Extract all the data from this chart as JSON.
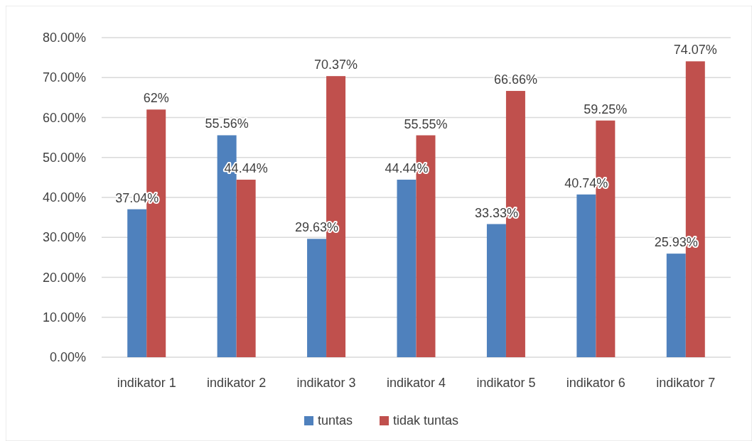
{
  "chart_data": {
    "type": "bar",
    "categories": [
      "indikator 1",
      "indikator 2",
      "indikator 3",
      "indikator 4",
      "indikator 5",
      "indikator 6",
      "indikator 7"
    ],
    "series": [
      {
        "name": "tuntas",
        "color": "#4f81bd",
        "values": [
          37.04,
          55.56,
          29.63,
          44.44,
          33.33,
          40.74,
          25.93
        ],
        "value_labels": [
          "37.04%",
          "55.56%",
          "29.63%",
          "44.44%",
          "33.33%",
          "40.74%",
          "25.93%"
        ]
      },
      {
        "name": "tidak tuntas",
        "color": "#c0504d",
        "values": [
          62,
          44.44,
          70.37,
          55.55,
          66.66,
          59.25,
          74.07
        ],
        "value_labels": [
          "62%",
          "44.44%",
          "70.37%",
          "55.55%",
          "66.66%",
          "59.25%",
          "74.07%"
        ]
      }
    ],
    "ylim": [
      0,
      80
    ],
    "yticks": [
      {
        "value": 0,
        "label": "0.00%"
      },
      {
        "value": 10,
        "label": "10.00%"
      },
      {
        "value": 20,
        "label": "20.00%"
      },
      {
        "value": 30,
        "label": "30.00%"
      },
      {
        "value": 40,
        "label": "40.00%"
      },
      {
        "value": 50,
        "label": "50.00%"
      },
      {
        "value": 60,
        "label": "60.00%"
      },
      {
        "value": 70,
        "label": "70.00%"
      },
      {
        "value": 80,
        "label": "80.00%"
      }
    ],
    "grid": "y",
    "legend": "bottom"
  }
}
